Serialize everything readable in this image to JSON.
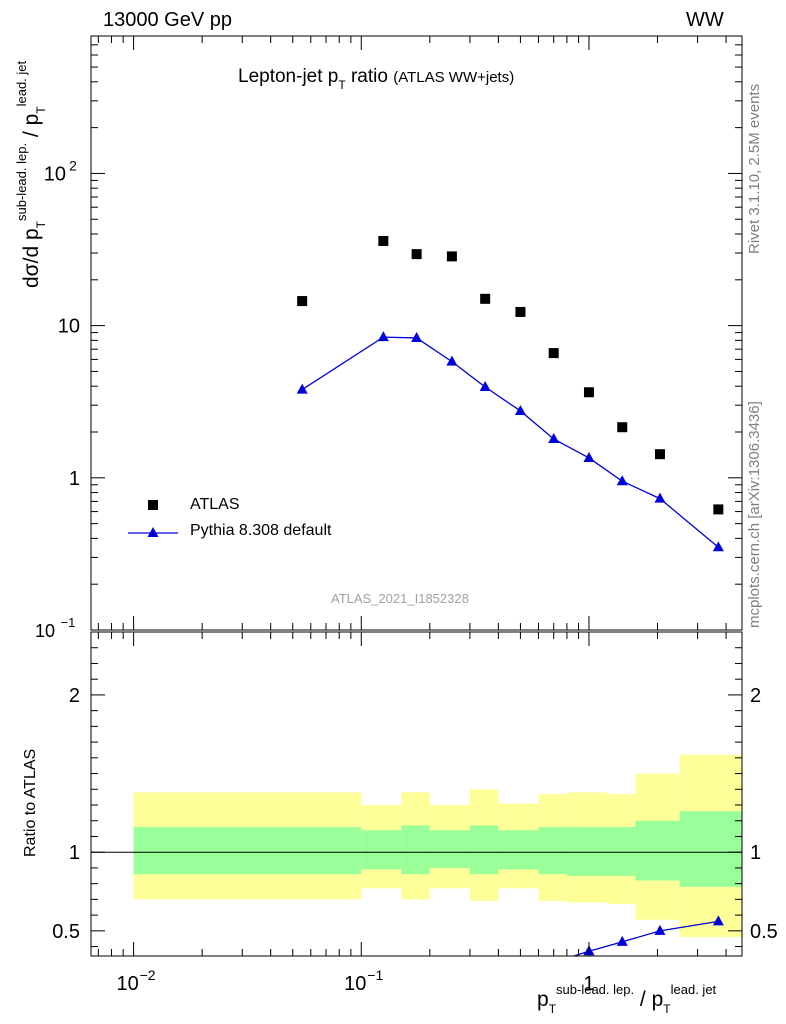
{
  "header": {
    "left": "13000 GeV pp",
    "right": "WW"
  },
  "title": {
    "main": "Lepton-jet p",
    "main_sub": "T",
    "main_after": " ratio",
    "paren": "(ATLAS WW+jets)"
  },
  "watermark": "ATLAS_2021_I1852328",
  "side_labels": {
    "rivet": "Rivet 3.1.10,  2.5M events",
    "mcplots": "mcplots.cern.ch [arXiv:1306.3436]"
  },
  "ylabel": {
    "d": "dσ/d p",
    "t1": "T",
    "sup1": "sub-lead. lep.",
    "slash": " / p",
    "t2": "T",
    "sup2": "lead. jet"
  },
  "ratio_ylabel": "Ratio to ATLAS",
  "xlabel": {
    "p1": "p",
    "t1": "T",
    "sup1": "sub-lead. lep.",
    "slash": " / p",
    "t2": "T",
    "sup2": "lead. jet"
  },
  "legend": {
    "atlas": "ATLAS",
    "pythia": "Pythia 8.308 default"
  },
  "colors": {
    "atlas": "#000000",
    "pythia": "#0000dd",
    "band_inner": "#99ff99",
    "band_outer": "#ffff99"
  },
  "chart_data": [
    {
      "type": "scatter",
      "panel": "main",
      "xscale": "log",
      "yscale": "log",
      "xlim": [
        0.0065,
        4.7
      ],
      "ylim": [
        0.1,
        800
      ],
      "x_ticks": [
        "10^-2",
        "10^-1",
        "1"
      ],
      "y_ticks": [
        "10^-1",
        "1",
        "10",
        "10^2"
      ],
      "series": [
        {
          "name": "ATLAS",
          "marker": "square",
          "x": [
            0.055,
            0.125,
            0.175,
            0.25,
            0.35,
            0.5,
            0.7,
            1.0,
            1.4,
            2.05,
            3.7
          ],
          "y": [
            14.5,
            36,
            29.5,
            28.5,
            15,
            12.3,
            6.6,
            3.65,
            2.15,
            1.43,
            0.62
          ]
        },
        {
          "name": "Pythia 8.308 default",
          "marker": "triangle",
          "line": true,
          "x": [
            0.055,
            0.125,
            0.175,
            0.25,
            0.35,
            0.5,
            0.7,
            1.0,
            1.4,
            2.05,
            3.7
          ],
          "y": [
            3.8,
            8.4,
            8.3,
            5.8,
            3.95,
            2.75,
            1.8,
            1.35,
            0.95,
            0.73,
            0.35
          ]
        }
      ]
    },
    {
      "type": "scatter",
      "panel": "ratio",
      "xscale": "log",
      "xlim": [
        0.0065,
        4.7
      ],
      "ylim": [
        0.34,
        2.4
      ],
      "y_ticks": [
        "0.5",
        "1",
        "2"
      ],
      "bands": [
        {
          "x0": 0.01,
          "x1": 0.1,
          "inner": [
            0.86,
            1.16
          ],
          "outer": [
            0.7,
            1.38
          ]
        },
        {
          "x0": 0.1,
          "x1": 0.15,
          "inner": [
            0.89,
            1.14
          ],
          "outer": [
            0.77,
            1.3
          ]
        },
        {
          "x0": 0.15,
          "x1": 0.2,
          "inner": [
            0.86,
            1.17
          ],
          "outer": [
            0.7,
            1.38
          ]
        },
        {
          "x0": 0.2,
          "x1": 0.3,
          "inner": [
            0.9,
            1.14
          ],
          "outer": [
            0.77,
            1.3
          ]
        },
        {
          "x0": 0.3,
          "x1": 0.4,
          "inner": [
            0.86,
            1.17
          ],
          "outer": [
            0.69,
            1.4
          ]
        },
        {
          "x0": 0.4,
          "x1": 0.6,
          "inner": [
            0.89,
            1.14
          ],
          "outer": [
            0.77,
            1.31
          ]
        },
        {
          "x0": 0.6,
          "x1": 0.8,
          "inner": [
            0.86,
            1.16
          ],
          "outer": [
            0.69,
            1.37
          ]
        },
        {
          "x0": 0.8,
          "x1": 1.2,
          "inner": [
            0.85,
            1.16
          ],
          "outer": [
            0.68,
            1.38
          ]
        },
        {
          "x0": 1.2,
          "x1": 1.6,
          "inner": [
            0.85,
            1.16
          ],
          "outer": [
            0.67,
            1.37
          ]
        },
        {
          "x0": 1.6,
          "x1": 2.5,
          "inner": [
            0.82,
            1.2
          ],
          "outer": [
            0.57,
            1.5
          ]
        },
        {
          "x0": 2.5,
          "x1": 4.7,
          "inner": [
            0.78,
            1.26
          ],
          "outer": [
            0.46,
            1.62
          ]
        }
      ],
      "series": [
        {
          "name": "Pythia 8.308 default",
          "x": [
            1.0,
            1.4,
            2.05,
            3.7
          ],
          "y": [
            0.37,
            0.43,
            0.5,
            0.56
          ],
          "err": [
            0.02,
            0.02,
            0.02,
            0.02
          ]
        }
      ]
    }
  ]
}
